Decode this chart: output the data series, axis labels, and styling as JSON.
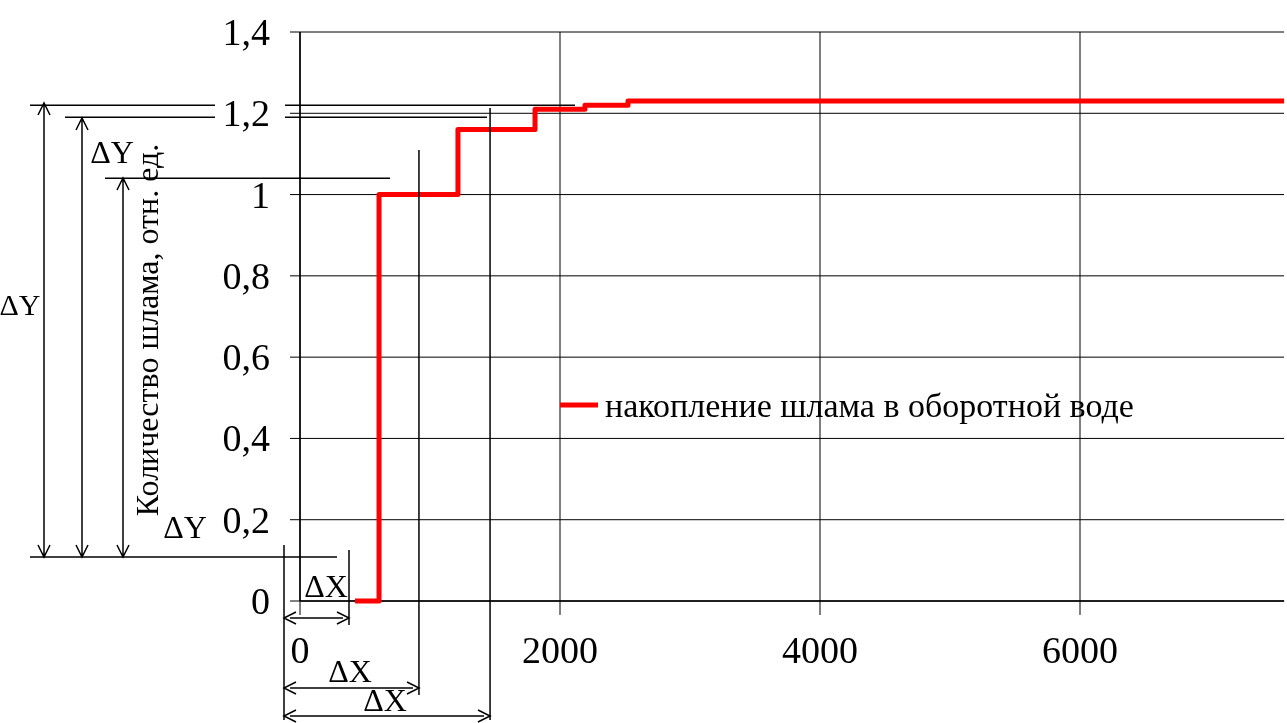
{
  "chart_data": {
    "type": "step",
    "ylabel": "Количество шлама, отн. ед.",
    "x": [
      423,
      608,
      1215,
      1808,
      2192,
      2523,
      7570
    ],
    "series": [
      {
        "name": "накопление шлама в оборотной воде",
        "color": "#ff0000",
        "values": [
          0,
          1,
          1.16,
          1.21,
          1.22,
          1.23,
          1.23
        ]
      }
    ],
    "xlim": [
      0,
      7570
    ],
    "xticks": [
      0,
      2000,
      4000,
      6000
    ],
    "ylim": [
      0,
      1.4
    ],
    "yticks": [
      0,
      {
        "value": 0.2,
        "label": "0,2"
      },
      {
        "value": 0.4,
        "label": "0,4"
      },
      {
        "value": 0.6,
        "label": "0,6"
      },
      {
        "value": 0.8,
        "label": "0,8"
      },
      1,
      {
        "value": 1.2,
        "label": "1,2"
      },
      {
        "value": 1.4,
        "label": "1,4"
      }
    ],
    "ref_lines": [
      {
        "axis": "x",
        "value": 915
      },
      {
        "axis": "x",
        "value": 1462
      },
      {
        "axis": "y",
        "value": 1.22
      },
      {
        "axis": "y",
        "value": 1.19
      },
      {
        "axis": "y",
        "value": 1.04
      }
    ],
    "grid": true,
    "legend": "right",
    "line_style": "solid",
    "marker": "none",
    "annotations": [
      "ΔY",
      "ΔY",
      "ΔY",
      "ΔX",
      "ΔX",
      "ΔX"
    ]
  }
}
